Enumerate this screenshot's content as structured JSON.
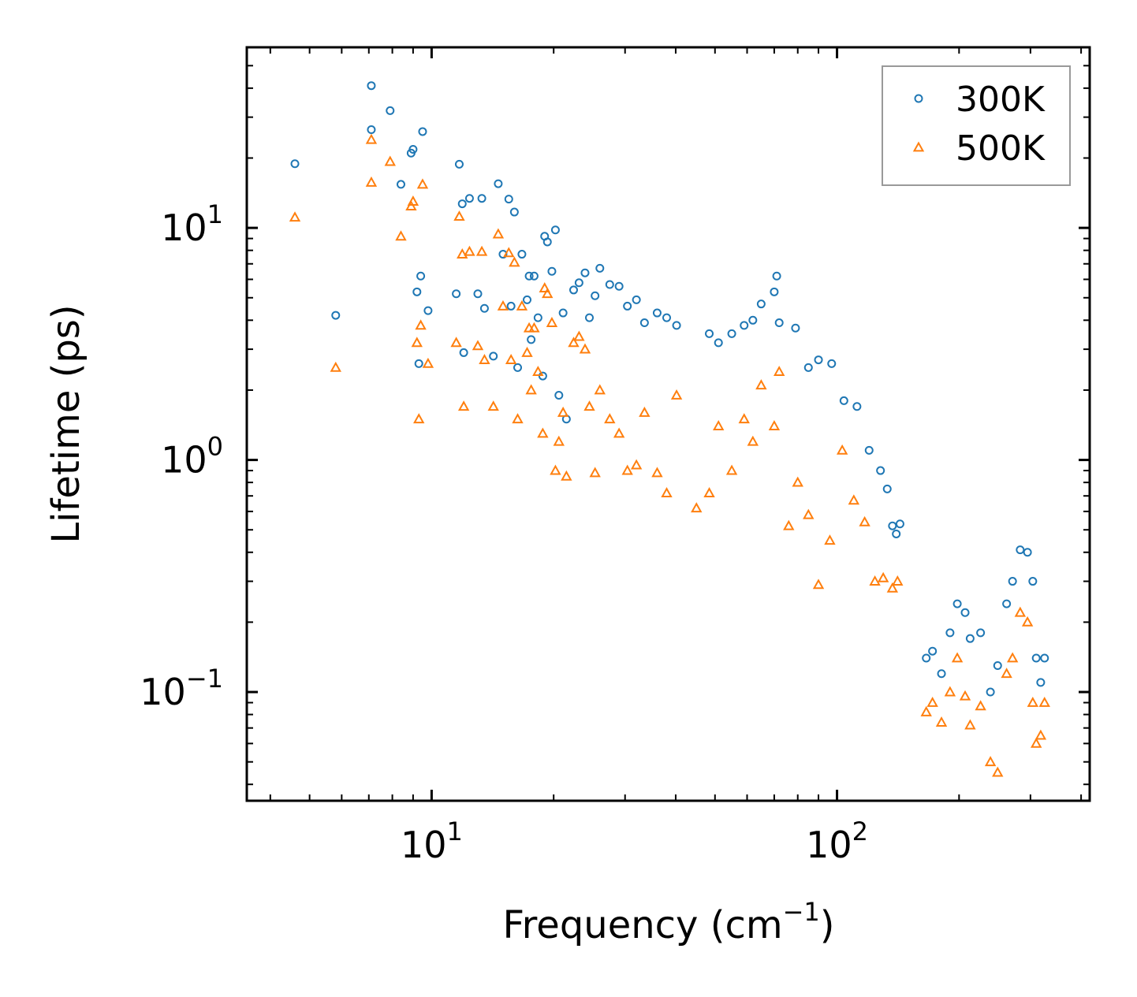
{
  "chart_data": {
    "type": "scatter",
    "xscale": "log",
    "yscale": "log",
    "xlim": [
      3.5,
      420
    ],
    "ylim": [
      0.034,
      60
    ],
    "xlabel": "Frequency (cm",
    "xlabel_sup": "−1",
    "xlabel_end": ")",
    "ylabel": "Lifetime (ps)",
    "x_ticks": [
      {
        "value": 10,
        "base": "10",
        "exp": "1"
      },
      {
        "value": 100,
        "base": "10",
        "exp": "2"
      }
    ],
    "y_ticks": [
      {
        "value": 10,
        "base": "10",
        "exp": "1"
      },
      {
        "value": 1,
        "base": "10",
        "exp": "0"
      },
      {
        "value": 0.1,
        "base": "10",
        "exp": "−1"
      }
    ],
    "legend_position": "top-right",
    "series": [
      {
        "name": "300K",
        "marker": "circle",
        "color": "#1f77b4",
        "points": [
          [
            4.6,
            18.9
          ],
          [
            5.8,
            4.2
          ],
          [
            7.1,
            41
          ],
          [
            7.1,
            26.5
          ],
          [
            7.9,
            32
          ],
          [
            8.4,
            15.4
          ],
          [
            8.9,
            21
          ],
          [
            9.0,
            21.8
          ],
          [
            9.2,
            5.3
          ],
          [
            9.3,
            2.6
          ],
          [
            9.4,
            6.2
          ],
          [
            9.5,
            26
          ],
          [
            9.8,
            4.4
          ],
          [
            11.5,
            5.2
          ],
          [
            11.7,
            18.8
          ],
          [
            11.9,
            12.7
          ],
          [
            12.0,
            2.9
          ],
          [
            12.4,
            13.4
          ],
          [
            13.0,
            5.2
          ],
          [
            13.3,
            13.4
          ],
          [
            13.5,
            4.5
          ],
          [
            14.2,
            2.8
          ],
          [
            14.6,
            15.5
          ],
          [
            15.0,
            7.7
          ],
          [
            15.5,
            13.3
          ],
          [
            15.7,
            4.6
          ],
          [
            16.0,
            11.7
          ],
          [
            16.3,
            2.5
          ],
          [
            16.7,
            7.7
          ],
          [
            17.2,
            4.9
          ],
          [
            17.4,
            6.2
          ],
          [
            17.6,
            3.3
          ],
          [
            17.9,
            6.2
          ],
          [
            18.3,
            4.1
          ],
          [
            18.8,
            2.3
          ],
          [
            19.0,
            9.2
          ],
          [
            19.3,
            8.7
          ],
          [
            19.8,
            6.5
          ],
          [
            20.2,
            9.8
          ],
          [
            20.6,
            1.9
          ],
          [
            21.1,
            4.3
          ],
          [
            21.5,
            1.5
          ],
          [
            22.4,
            5.4
          ],
          [
            23.1,
            5.8
          ],
          [
            23.9,
            6.4
          ],
          [
            24.5,
            4.1
          ],
          [
            25.3,
            5.1
          ],
          [
            26.0,
            6.7
          ],
          [
            27.5,
            5.7
          ],
          [
            29.0,
            5.6
          ],
          [
            30.4,
            4.6
          ],
          [
            32.0,
            4.9
          ],
          [
            33.5,
            3.9
          ],
          [
            36.0,
            4.3
          ],
          [
            38.0,
            4.1
          ],
          [
            40.2,
            3.8
          ],
          [
            48.4,
            3.5
          ],
          [
            51.0,
            3.2
          ],
          [
            55.0,
            3.5
          ],
          [
            59.0,
            3.8
          ],
          [
            62.0,
            4.0
          ],
          [
            65.0,
            4.7
          ],
          [
            70.0,
            5.3
          ],
          [
            71.0,
            6.2
          ],
          [
            72.0,
            3.9
          ],
          [
            79.0,
            3.7
          ],
          [
            85.0,
            2.5
          ],
          [
            90.0,
            2.7
          ],
          [
            97.0,
            2.6
          ],
          [
            104.0,
            1.8
          ],
          [
            112.0,
            1.7
          ],
          [
            120.0,
            1.1
          ],
          [
            128.0,
            0.9
          ],
          [
            133.0,
            0.75
          ],
          [
            137.0,
            0.52
          ],
          [
            140.0,
            0.48
          ],
          [
            143.0,
            0.53
          ],
          [
            166.0,
            0.14
          ],
          [
            172.0,
            0.15
          ],
          [
            181.0,
            0.12
          ],
          [
            190.0,
            0.18
          ],
          [
            198.0,
            0.24
          ],
          [
            207.0,
            0.22
          ],
          [
            213.0,
            0.17
          ],
          [
            226.0,
            0.18
          ],
          [
            239.0,
            0.1
          ],
          [
            249.0,
            0.13
          ],
          [
            262.0,
            0.24
          ],
          [
            271.0,
            0.3
          ],
          [
            283.0,
            0.41
          ],
          [
            295.0,
            0.4
          ],
          [
            304.0,
            0.3
          ],
          [
            310.0,
            0.14
          ],
          [
            318.0,
            0.11
          ],
          [
            325.0,
            0.14
          ]
        ]
      },
      {
        "name": "500K",
        "marker": "triangle",
        "color": "#ff7f0e",
        "points": [
          [
            4.6,
            11.1
          ],
          [
            5.8,
            2.5
          ],
          [
            7.1,
            24
          ],
          [
            7.1,
            15.7
          ],
          [
            7.9,
            19.3
          ],
          [
            8.4,
            9.2
          ],
          [
            8.9,
            12.4
          ],
          [
            9.0,
            13
          ],
          [
            9.2,
            3.2
          ],
          [
            9.3,
            1.5
          ],
          [
            9.4,
            3.8
          ],
          [
            9.5,
            15.4
          ],
          [
            9.8,
            2.6
          ],
          [
            11.5,
            3.2
          ],
          [
            11.7,
            11.2
          ],
          [
            11.9,
            7.7
          ],
          [
            12.0,
            1.7
          ],
          [
            12.4,
            7.9
          ],
          [
            13.0,
            3.1
          ],
          [
            13.3,
            7.9
          ],
          [
            13.5,
            2.7
          ],
          [
            14.2,
            1.7
          ],
          [
            14.6,
            9.4
          ],
          [
            15.0,
            4.6
          ],
          [
            15.5,
            7.8
          ],
          [
            15.7,
            2.7
          ],
          [
            16.0,
            7.1
          ],
          [
            16.3,
            1.5
          ],
          [
            16.7,
            4.6
          ],
          [
            17.2,
            2.9
          ],
          [
            17.4,
            3.7
          ],
          [
            17.6,
            2.0
          ],
          [
            17.9,
            3.7
          ],
          [
            18.3,
            2.4
          ],
          [
            18.8,
            1.3
          ],
          [
            19.0,
            5.5
          ],
          [
            19.3,
            5.2
          ],
          [
            19.8,
            3.9
          ],
          [
            20.2,
            0.9
          ],
          [
            20.6,
            1.2
          ],
          [
            21.1,
            1.6
          ],
          [
            21.5,
            0.85
          ],
          [
            22.4,
            3.2
          ],
          [
            23.1,
            3.4
          ],
          [
            23.9,
            3.0
          ],
          [
            24.5,
            1.7
          ],
          [
            25.3,
            0.88
          ],
          [
            26.0,
            2.0
          ],
          [
            27.5,
            1.5
          ],
          [
            29.0,
            1.3
          ],
          [
            30.4,
            0.9
          ],
          [
            32.0,
            0.95
          ],
          [
            33.5,
            1.6
          ],
          [
            36.0,
            0.88
          ],
          [
            38.0,
            0.72
          ],
          [
            40.2,
            1.9
          ],
          [
            45.0,
            0.62
          ],
          [
            48.4,
            0.72
          ],
          [
            51.0,
            1.4
          ],
          [
            55.0,
            0.9
          ],
          [
            59.0,
            1.5
          ],
          [
            62.0,
            1.2
          ],
          [
            65.0,
            2.1
          ],
          [
            70.0,
            1.4
          ],
          [
            72.0,
            2.4
          ],
          [
            76.0,
            0.52
          ],
          [
            80.0,
            0.8
          ],
          [
            85.0,
            0.58
          ],
          [
            90.0,
            0.29
          ],
          [
            96.0,
            0.45
          ],
          [
            103.0,
            1.1
          ],
          [
            110.0,
            0.67
          ],
          [
            117.0,
            0.54
          ],
          [
            124.0,
            0.3
          ],
          [
            130.0,
            0.31
          ],
          [
            137.0,
            0.28
          ],
          [
            141.0,
            0.3
          ],
          [
            166.0,
            0.082
          ],
          [
            172.0,
            0.09
          ],
          [
            181.0,
            0.074
          ],
          [
            190.0,
            0.1
          ],
          [
            198.0,
            0.14
          ],
          [
            207.0,
            0.096
          ],
          [
            213.0,
            0.072
          ],
          [
            226.0,
            0.087
          ],
          [
            239.0,
            0.05
          ],
          [
            249.0,
            0.045
          ],
          [
            262.0,
            0.12
          ],
          [
            271.0,
            0.14
          ],
          [
            283.0,
            0.22
          ],
          [
            295.0,
            0.2
          ],
          [
            304.0,
            0.09
          ],
          [
            310.0,
            0.06
          ],
          [
            318.0,
            0.065
          ],
          [
            325.0,
            0.09
          ]
        ]
      }
    ]
  }
}
